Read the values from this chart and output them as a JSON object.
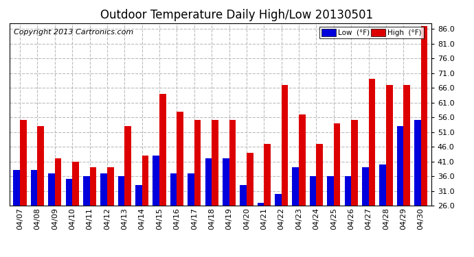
{
  "title": "Outdoor Temperature Daily High/Low 20130501",
  "copyright": "Copyright 2013 Cartronics.com",
  "legend_low": "Low  (°F)",
  "legend_high": "High  (°F)",
  "dates": [
    "04/07",
    "04/08",
    "04/09",
    "04/10",
    "04/11",
    "04/12",
    "04/13",
    "04/14",
    "04/15",
    "04/16",
    "04/17",
    "04/18",
    "04/19",
    "04/20",
    "04/21",
    "04/22",
    "04/23",
    "04/24",
    "04/25",
    "04/26",
    "04/27",
    "04/28",
    "04/29",
    "04/30"
  ],
  "lows": [
    38,
    38,
    37,
    35,
    36,
    37,
    36,
    33,
    43,
    37,
    37,
    42,
    42,
    33,
    27,
    30,
    39,
    36,
    36,
    36,
    39,
    40,
    53,
    55
  ],
  "highs": [
    55,
    53,
    42,
    41,
    39,
    39,
    53,
    43,
    64,
    58,
    55,
    55,
    55,
    44,
    47,
    67,
    57,
    47,
    54,
    55,
    69,
    67,
    67,
    87
  ],
  "ylim_min": 26.0,
  "ylim_max": 87.0,
  "yticks": [
    26.0,
    31.0,
    36.0,
    41.0,
    46.0,
    51.0,
    56.0,
    61.0,
    66.0,
    71.0,
    76.0,
    81.0,
    86.0
  ],
  "bg_color": "#ffffff",
  "plot_bg_color": "#ffffff",
  "low_color": "#0000dd",
  "high_color": "#dd0000",
  "grid_color": "#bbbbbb",
  "title_fontsize": 12,
  "copyright_fontsize": 8,
  "tick_fontsize": 8,
  "bar_width": 0.38
}
